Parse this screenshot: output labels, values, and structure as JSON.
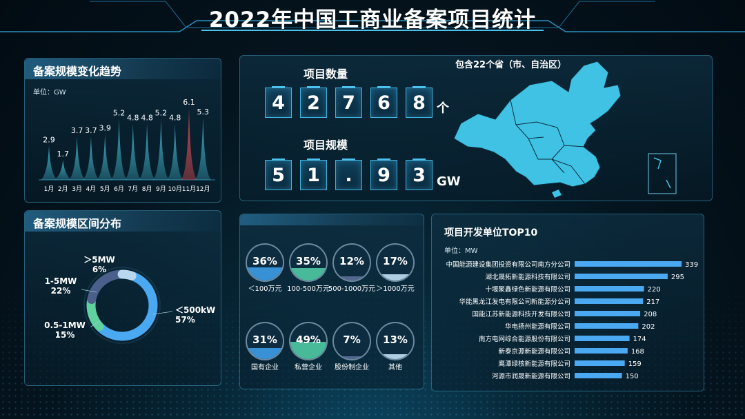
{
  "title": "2022年中国工商业备案项目统计",
  "colors": {
    "accent": "#46c3ea",
    "bar_normal": "#3fb0c8",
    "bar_highlight": "#d24a52",
    "top10_bar": "#4aa9f0",
    "donut_large": "#4aa9f0",
    "donut_mid": "#5fd2a0",
    "donut_small": "#4a5f8a",
    "donut_tiny": "#b9d8ef",
    "map_fill": "#3fc2e3"
  },
  "trend": {
    "title": "备案规模变化趋势",
    "unit": "单位：GW"
  },
  "distribution": {
    "title": "备案规模区间分布"
  },
  "stats": {
    "count_label": "项目数量",
    "count_digits": [
      "4",
      "2",
      "7",
      "6",
      "8"
    ],
    "count_unit": "个",
    "scale_label": "项目规模",
    "scale_digits": [
      "5",
      "1",
      ".",
      "9",
      "3"
    ],
    "scale_unit": "GW"
  },
  "map": {
    "title": "包含22个省（市、自治区）"
  },
  "investment": [
    {
      "pct": "36%",
      "value": 36,
      "label": "＜100万元",
      "color": "#3d9be6"
    },
    {
      "pct": "35%",
      "value": 35,
      "label": "100-500万元",
      "color": "#4fc9a3"
    },
    {
      "pct": "12%",
      "value": 12,
      "label": "500-1000万元",
      "color": "#5d6f98"
    },
    {
      "pct": "17%",
      "value": 17,
      "label": "＞1000万元",
      "color": "#bfe0f4"
    }
  ],
  "ownership": [
    {
      "pct": "31%",
      "value": 31,
      "label": "国有企业",
      "color": "#3d9be6"
    },
    {
      "pct": "49%",
      "value": 49,
      "label": "私营企业",
      "color": "#4fc9a3"
    },
    {
      "pct": "7%",
      "value": 7,
      "label": "股份制企业",
      "color": "#5d6f98"
    },
    {
      "pct": "13%",
      "value": 13,
      "label": "其他",
      "color": "#bfe0f4"
    }
  ],
  "top10": {
    "title": "项目开发单位TOP10",
    "unit": "单位：MW"
  },
  "chart_data": [
    {
      "type": "area",
      "title": "备案规模变化趋势",
      "ylabel": "单位：GW",
      "categories": [
        "1月",
        "2月",
        "3月",
        "4月",
        "5月",
        "6月",
        "7月",
        "8月",
        "9月",
        "10月",
        "11月",
        "12月"
      ],
      "values": [
        2.9,
        1.7,
        3.7,
        3.7,
        3.9,
        5.2,
        4.8,
        4.8,
        5.2,
        4.8,
        6.1,
        5.3
      ],
      "highlight_index": 10,
      "ylim": [
        0,
        7
      ]
    },
    {
      "type": "pie",
      "title": "备案规模区间分布",
      "slices": [
        {
          "label": "＜500kW",
          "pct": "57%",
          "value": 57
        },
        {
          "label": "0.5-1MW",
          "pct": "15%",
          "value": 15
        },
        {
          "label": "1-5MW",
          "pct": "22%",
          "value": 22
        },
        {
          "label": "＞5MW",
          "pct": "6%",
          "value": 6
        }
      ]
    },
    {
      "type": "bar",
      "title": "项目开发单位TOP10",
      "xlabel": "单位：MW",
      "categories": [
        "中国能源建设集团投资有限公司南方分公司",
        "湖北晟拓新能源科技有限公司",
        "十堰聚鑫绿色新能源有限公司",
        "华能黑龙江发电有限公司新能源分公司",
        "国能江苏新能源科技开发有限公司",
        "华电扬州能源有限公司",
        "南方电网综合能源股份有限公司",
        "新泰京源新能源有限公司",
        "鹰潭绿核新能源有限公司",
        "河源市润晟新能源有限公司"
      ],
      "values": [
        339,
        295,
        220,
        217,
        208,
        202,
        174,
        168,
        159,
        150
      ]
    }
  ]
}
